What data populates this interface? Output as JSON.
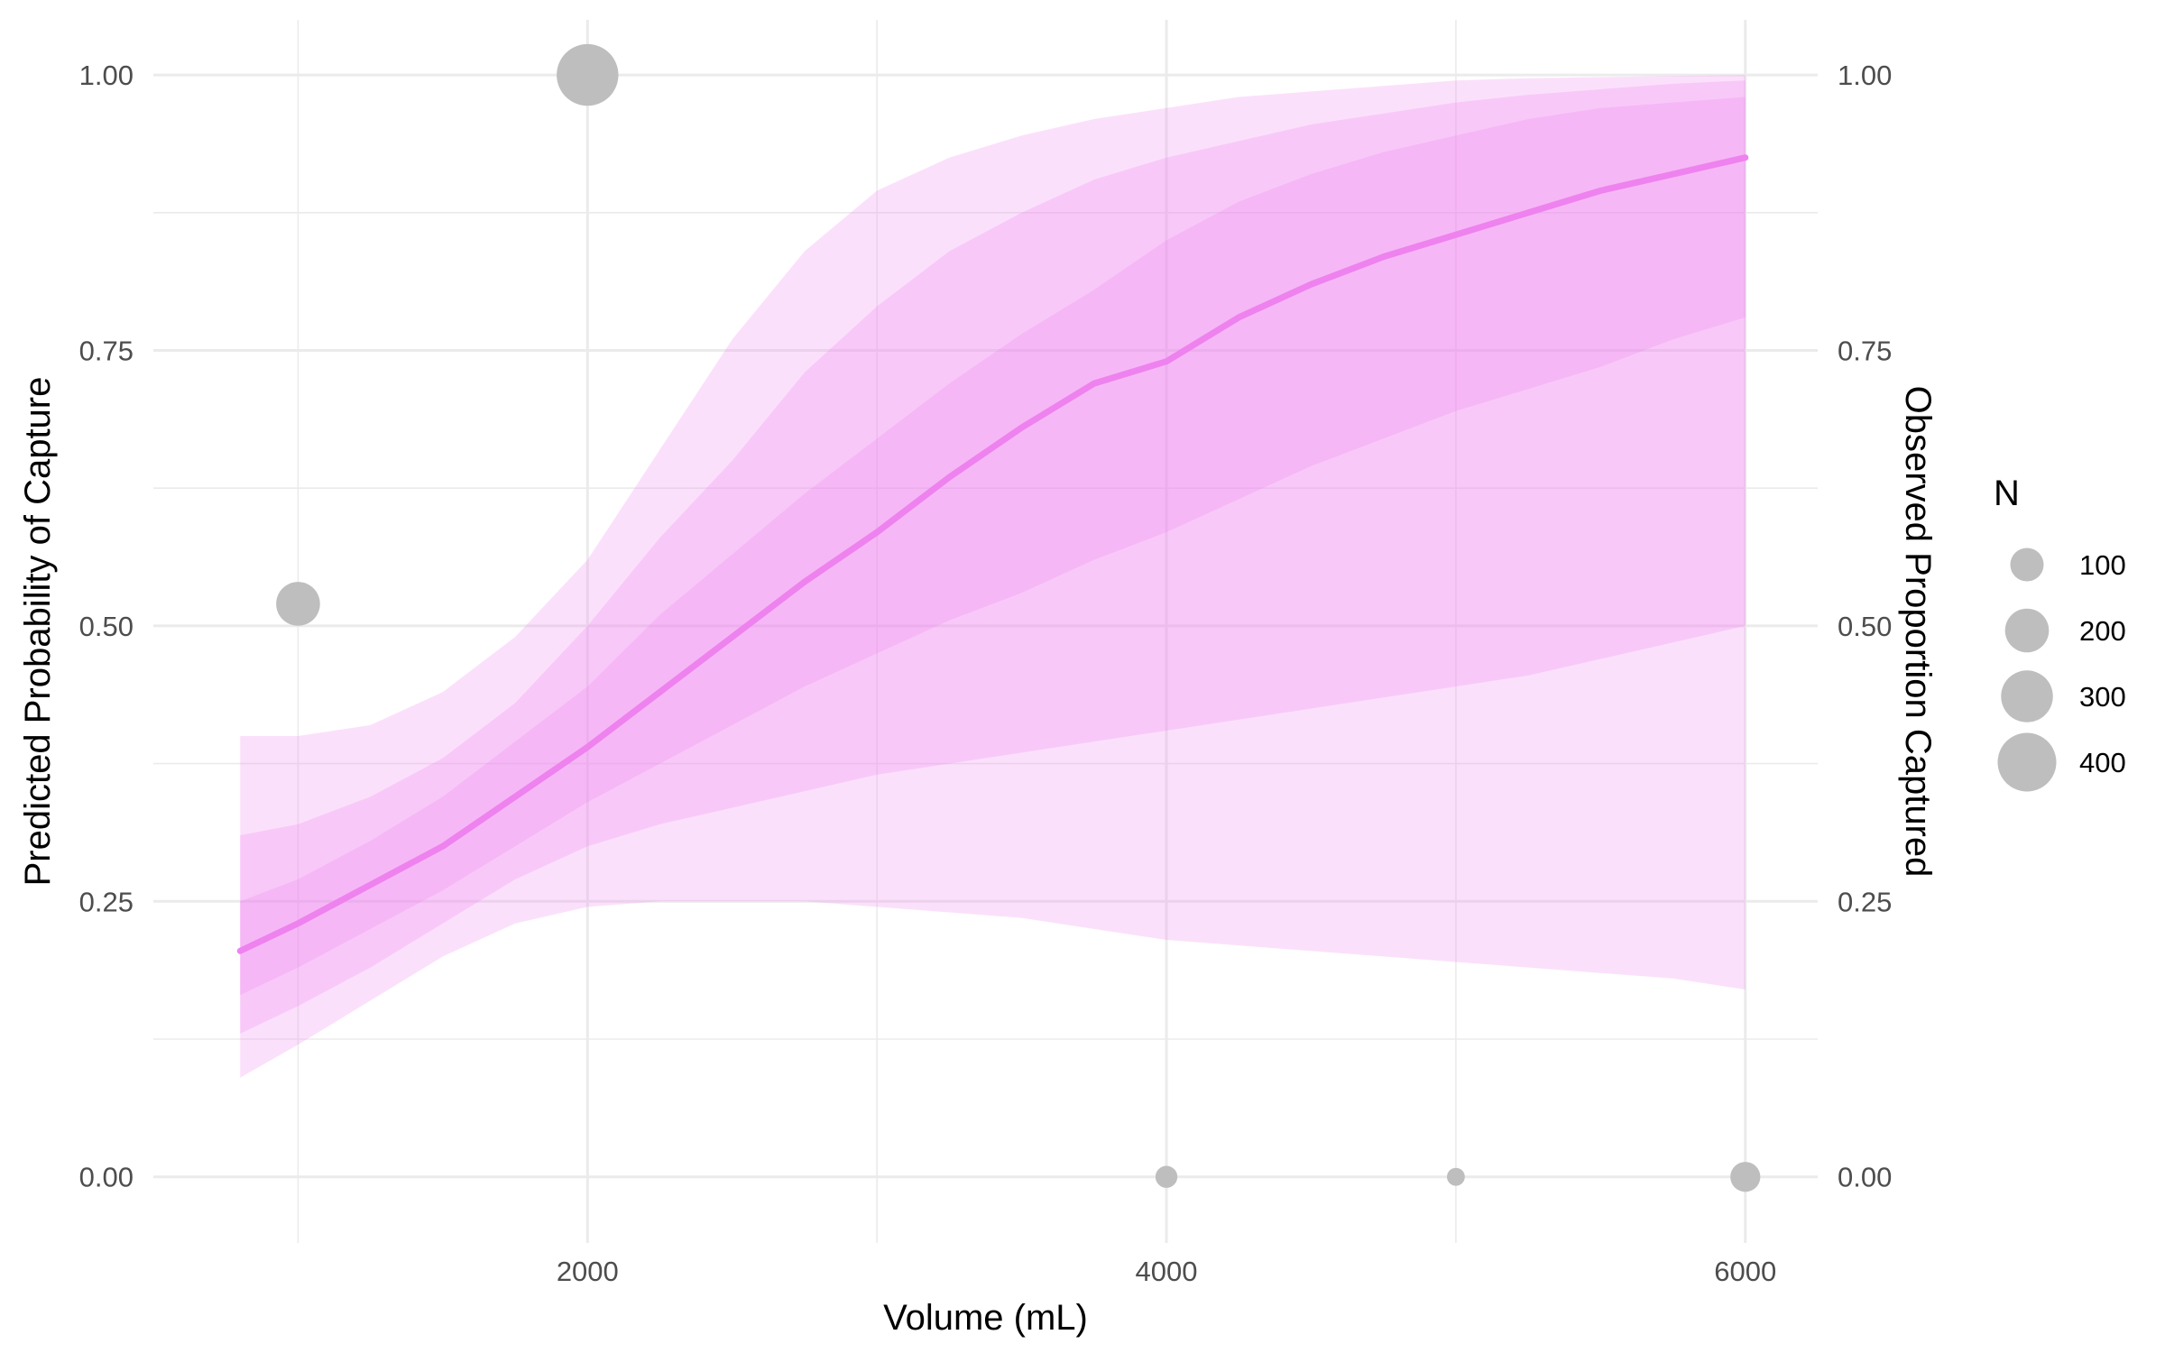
{
  "chart_data": {
    "type": "line",
    "xlabel": "Volume (mL)",
    "ylabel": "Predicted Probability of Capture",
    "ylabel_right": "Observed Proportion Captured",
    "xlim": [
      500,
      6250
    ],
    "ylim": [
      -0.06,
      1.05
    ],
    "x_ticks": [
      2000,
      4000,
      6000
    ],
    "x_tick_labels": [
      "2000",
      "4000",
      "6000"
    ],
    "y_ticks": [
      0,
      0.25,
      0.5,
      0.75,
      1
    ],
    "y_tick_labels": [
      "0.00",
      "0.25",
      "0.50",
      "0.75",
      "1.00"
    ],
    "grid": true,
    "colors": {
      "ribbon": "#ee82ee",
      "line": "#ee82ee",
      "points": "#bebebe",
      "grid": "#ebebeb"
    },
    "prediction": {
      "x": [
        800,
        1000,
        1250,
        1500,
        1750,
        2000,
        2250,
        2500,
        2750,
        3000,
        3250,
        3500,
        3750,
        4000,
        4250,
        4500,
        4750,
        5000,
        5250,
        5500,
        5750,
        6000
      ],
      "y": [
        0.205,
        0.23,
        0.265,
        0.3,
        0.345,
        0.39,
        0.44,
        0.49,
        0.54,
        0.585,
        0.635,
        0.68,
        0.72,
        0.74,
        0.78,
        0.81,
        0.835,
        0.855,
        0.875,
        0.895,
        0.91,
        0.925
      ]
    },
    "ribbons": [
      {
        "level": "outer",
        "x": [
          800,
          1000,
          1250,
          1500,
          1750,
          2000,
          2250,
          2500,
          2750,
          3000,
          3250,
          3500,
          3750,
          4000,
          4250,
          4500,
          4750,
          5000,
          5250,
          5500,
          5750,
          6000
        ],
        "lower": [
          0.09,
          0.12,
          0.16,
          0.2,
          0.23,
          0.245,
          0.25,
          0.25,
          0.25,
          0.245,
          0.24,
          0.235,
          0.225,
          0.215,
          0.21,
          0.205,
          0.2,
          0.195,
          0.19,
          0.185,
          0.18,
          0.17
        ],
        "upper": [
          0.4,
          0.4,
          0.41,
          0.44,
          0.49,
          0.56,
          0.66,
          0.76,
          0.84,
          0.895,
          0.925,
          0.945,
          0.96,
          0.97,
          0.98,
          0.985,
          0.99,
          0.995,
          0.997,
          0.998,
          0.999,
          1.0
        ]
      },
      {
        "level": "middle",
        "x": [
          800,
          1000,
          1250,
          1500,
          1750,
          2000,
          2250,
          2500,
          2750,
          3000,
          3250,
          3500,
          3750,
          4000,
          4250,
          4500,
          4750,
          5000,
          5250,
          5500,
          5750,
          6000
        ],
        "lower": [
          0.13,
          0.155,
          0.19,
          0.23,
          0.27,
          0.3,
          0.32,
          0.335,
          0.35,
          0.365,
          0.375,
          0.385,
          0.395,
          0.405,
          0.415,
          0.425,
          0.435,
          0.445,
          0.455,
          0.47,
          0.485,
          0.5
        ],
        "upper": [
          0.31,
          0.32,
          0.345,
          0.38,
          0.43,
          0.5,
          0.58,
          0.65,
          0.73,
          0.79,
          0.84,
          0.875,
          0.905,
          0.925,
          0.94,
          0.955,
          0.965,
          0.975,
          0.982,
          0.987,
          0.992,
          0.995
        ]
      },
      {
        "level": "inner",
        "x": [
          800,
          1000,
          1250,
          1500,
          1750,
          2000,
          2250,
          2500,
          2750,
          3000,
          3250,
          3500,
          3750,
          4000,
          4250,
          4500,
          4750,
          5000,
          5250,
          5500,
          5750,
          6000
        ],
        "lower": [
          0.165,
          0.19,
          0.225,
          0.26,
          0.3,
          0.34,
          0.375,
          0.41,
          0.445,
          0.475,
          0.505,
          0.53,
          0.56,
          0.585,
          0.615,
          0.645,
          0.67,
          0.695,
          0.715,
          0.735,
          0.76,
          0.78
        ],
        "upper": [
          0.25,
          0.27,
          0.305,
          0.345,
          0.395,
          0.445,
          0.51,
          0.565,
          0.62,
          0.67,
          0.72,
          0.765,
          0.805,
          0.85,
          0.885,
          0.91,
          0.93,
          0.945,
          0.96,
          0.97,
          0.975,
          0.98
        ]
      }
    ],
    "observed": [
      {
        "x": 1000,
        "y": 0.52,
        "n": 200
      },
      {
        "x": 2000,
        "y": 1.0,
        "n": 450
      },
      {
        "x": 4000,
        "y": 0.0,
        "n": 30
      },
      {
        "x": 5000,
        "y": 0.0,
        "n": 15
      },
      {
        "x": 6000,
        "y": 0.0,
        "n": 75
      }
    ],
    "legend": {
      "title": "N",
      "position": "right",
      "entries": [
        {
          "label": "100",
          "n": 100
        },
        {
          "label": "200",
          "n": 200
        },
        {
          "label": "300",
          "n": 300
        },
        {
          "label": "400",
          "n": 400
        }
      ]
    }
  }
}
